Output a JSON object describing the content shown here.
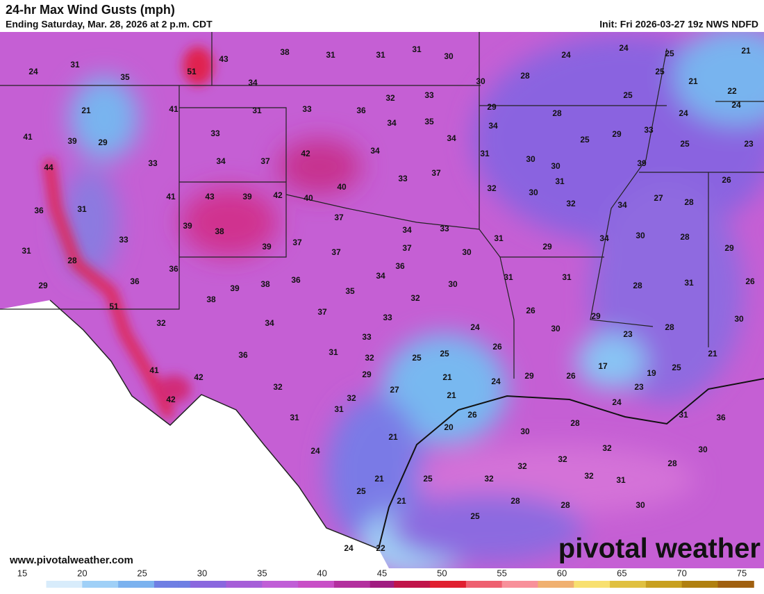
{
  "header": {
    "title": "24-hr Max Wind Gusts (mph)",
    "subtitle": "Ending Saturday, Mar. 28, 2026 at 2 p.m. CDT",
    "init": "Init: Fri 2026-03-27 19z NWS NDFD"
  },
  "footer": {
    "website": "www.pivotalweather.com",
    "logo": "pivotal weather"
  },
  "colorbar": {
    "ticks": [
      15,
      20,
      25,
      30,
      35,
      40,
      45,
      50,
      55,
      60,
      65,
      70,
      75
    ]
  },
  "map": {
    "labels": [
      24,
      31,
      35,
      43,
      51,
      38,
      31,
      31,
      31,
      30,
      30,
      28,
      24,
      24,
      25,
      21,
      25,
      21,
      22,
      24,
      34,
      41,
      21,
      41,
      39,
      29,
      31,
      33,
      36,
      32,
      33,
      34,
      35,
      33,
      29,
      34,
      28,
      25,
      24,
      29,
      25,
      33,
      25,
      23,
      34,
      34,
      42,
      34,
      37,
      33,
      44,
      31,
      30,
      30,
      39,
      40,
      37,
      33,
      32,
      30,
      31,
      26,
      41,
      43,
      39,
      42,
      40,
      32,
      34,
      27,
      28,
      36,
      31,
      37,
      34,
      33,
      39,
      38,
      33,
      31,
      34,
      30,
      28,
      31,
      28,
      37,
      39,
      37,
      37,
      30,
      29,
      29,
      36,
      36,
      29,
      36,
      34,
      31,
      31,
      39,
      38,
      36,
      35,
      30,
      28,
      31,
      26,
      38,
      51,
      32,
      37,
      26,
      29,
      30,
      33,
      32,
      34,
      24,
      30,
      28,
      33,
      23,
      26,
      31,
      36,
      25,
      25,
      32,
      21,
      17,
      25,
      29,
      41,
      42,
      21,
      24,
      29,
      26,
      19,
      27,
      21,
      32,
      42,
      32,
      23,
      26,
      31,
      31,
      24,
      28,
      31,
      36,
      20,
      21,
      30,
      32,
      30,
      24,
      32,
      32,
      28,
      32,
      21,
      32,
      31,
      25,
      25,
      28,
      28,
      30,
      21,
      25,
      24,
      22
    ]
  }
}
